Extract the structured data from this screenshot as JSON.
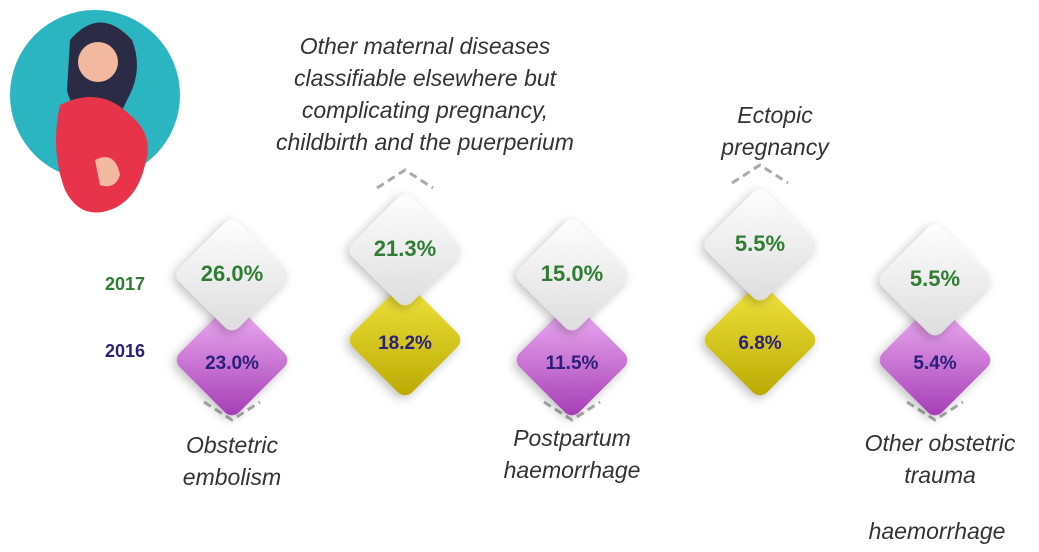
{
  "years": [
    "2017",
    "2016"
  ],
  "items": [
    {
      "label_lines": [
        "Obstetric",
        "embolism"
      ],
      "value_2017": "26.0%",
      "value_2016": "23.0%"
    },
    {
      "label_lines": [
        "Other maternal diseases",
        "classifiable elsewhere but",
        "complicating pregnancy,",
        "childbirth and the puerperium"
      ],
      "value_2017": "21.3%",
      "value_2016": "18.2%"
    },
    {
      "label_lines": [
        "Postpartum",
        "haemorrhage"
      ],
      "value_2017": "15.0%",
      "value_2016": "11.5%"
    },
    {
      "label_lines": [
        "Ectopic",
        "pregnancy"
      ],
      "value_2017": "5.5%",
      "value_2016": "6.8%"
    },
    {
      "label_lines": [
        "Other obstetric",
        "trauma"
      ],
      "value_2017": "5.5%",
      "value_2016": "5.4%"
    }
  ],
  "extra_label": "haemorrhage"
}
